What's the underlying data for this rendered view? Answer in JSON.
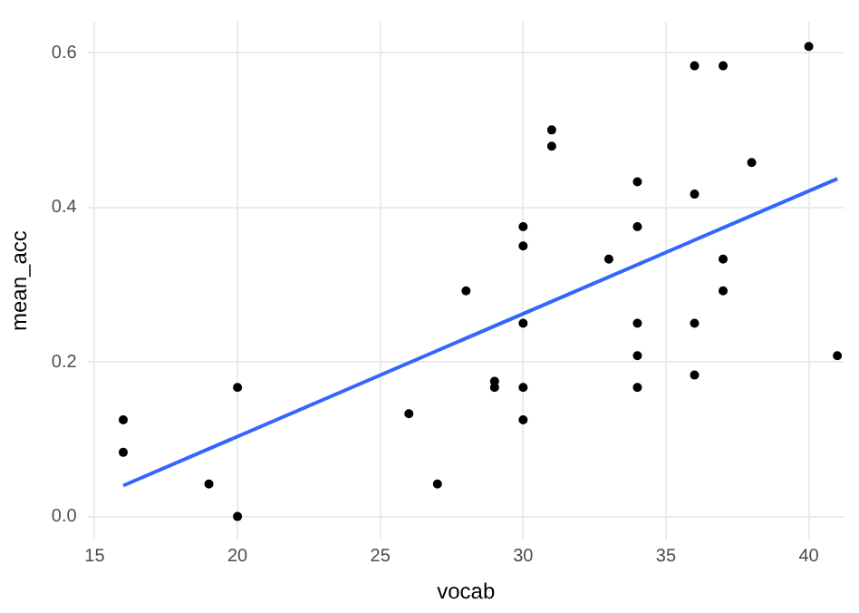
{
  "chart_data": {
    "type": "scatter",
    "xlabel": "vocab",
    "ylabel": "mean_acc",
    "xlim": [
      14.75,
      41.25
    ],
    "ylim": [
      -0.03,
      0.64
    ],
    "xticks": [
      15,
      20,
      25,
      30,
      35,
      40
    ],
    "yticks": [
      {
        "value": 0,
        "label": "0.0"
      },
      {
        "value": 0.2,
        "label": "0.2"
      },
      {
        "value": 0.4,
        "label": "0.4"
      },
      {
        "value": 0.6,
        "label": "0.6"
      }
    ],
    "grid": true,
    "legend": false,
    "series": [
      {
        "marker": "circle",
        "color": "#000000",
        "x": [
          16,
          16,
          19,
          20,
          20,
          26,
          27,
          28,
          29,
          29,
          30,
          30,
          30,
          30,
          30,
          31,
          31,
          33,
          34,
          34,
          34,
          34,
          34,
          36,
          36,
          36,
          36,
          37,
          37,
          37,
          38,
          40,
          41
        ],
        "values": [
          0.125,
          0.083,
          0.042,
          0.167,
          0,
          0.133,
          0.042,
          0.292,
          0.167,
          0.175,
          0.375,
          0.35,
          0.25,
          0.167,
          0.125,
          0.5,
          0.479,
          0.333,
          0.433,
          0.375,
          0.25,
          0.208,
          0.167,
          0.583,
          0.417,
          0.25,
          0.183,
          0.583,
          0.333,
          0.292,
          0.458,
          0.608,
          0.208
        ]
      },
      {
        "type": "line",
        "marker": "none",
        "color": "#3366ff",
        "x": [
          16,
          41
        ],
        "values": [
          0.04,
          0.437
        ]
      }
    ]
  }
}
